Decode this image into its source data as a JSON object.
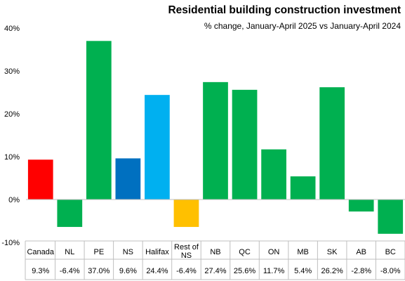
{
  "chart_data": {
    "type": "bar",
    "title": "Residential building construction investment",
    "subtitle": "% change, January-April 2025 vs January-April 2024",
    "xlabel": "",
    "ylabel": "",
    "ylim": [
      -10,
      40
    ],
    "y_ticks": [
      "-10%",
      "0%",
      "10%",
      "20%",
      "30%",
      "40%"
    ],
    "y_tick_values": [
      -10,
      0,
      10,
      20,
      30,
      40
    ],
    "grid": false,
    "legend": "none",
    "categories": [
      "Canada",
      "NL",
      "PE",
      "NS",
      "Halifax",
      "Rest of NS",
      "NB",
      "QC",
      "ON",
      "MB",
      "SK",
      "AB",
      "BC"
    ],
    "category_lines": [
      [
        "Canada"
      ],
      [
        "NL"
      ],
      [
        "PE"
      ],
      [
        "NS"
      ],
      [
        "Halifax"
      ],
      [
        "Rest of",
        "NS"
      ],
      [
        "NB"
      ],
      [
        "QC"
      ],
      [
        "ON"
      ],
      [
        "MB"
      ],
      [
        "SK"
      ],
      [
        "AB"
      ],
      [
        "BC"
      ]
    ],
    "values": [
      9.3,
      -6.4,
      37.0,
      9.6,
      24.4,
      -6.4,
      27.4,
      25.6,
      11.7,
      5.4,
      26.2,
      -2.8,
      -8.0
    ],
    "value_labels": [
      "9.3%",
      "-6.4%",
      "37.0%",
      "9.6%",
      "24.4%",
      "-6.4%",
      "27.4%",
      "25.6%",
      "11.7%",
      "5.4%",
      "26.2%",
      "-2.8%",
      "-8.0%"
    ],
    "colors": [
      "#ff0000",
      "#00b050",
      "#00b050",
      "#0070c0",
      "#00b0f0",
      "#ffc000",
      "#00b050",
      "#00b050",
      "#00b050",
      "#00b050",
      "#00b050",
      "#00b050",
      "#00b050"
    ]
  }
}
